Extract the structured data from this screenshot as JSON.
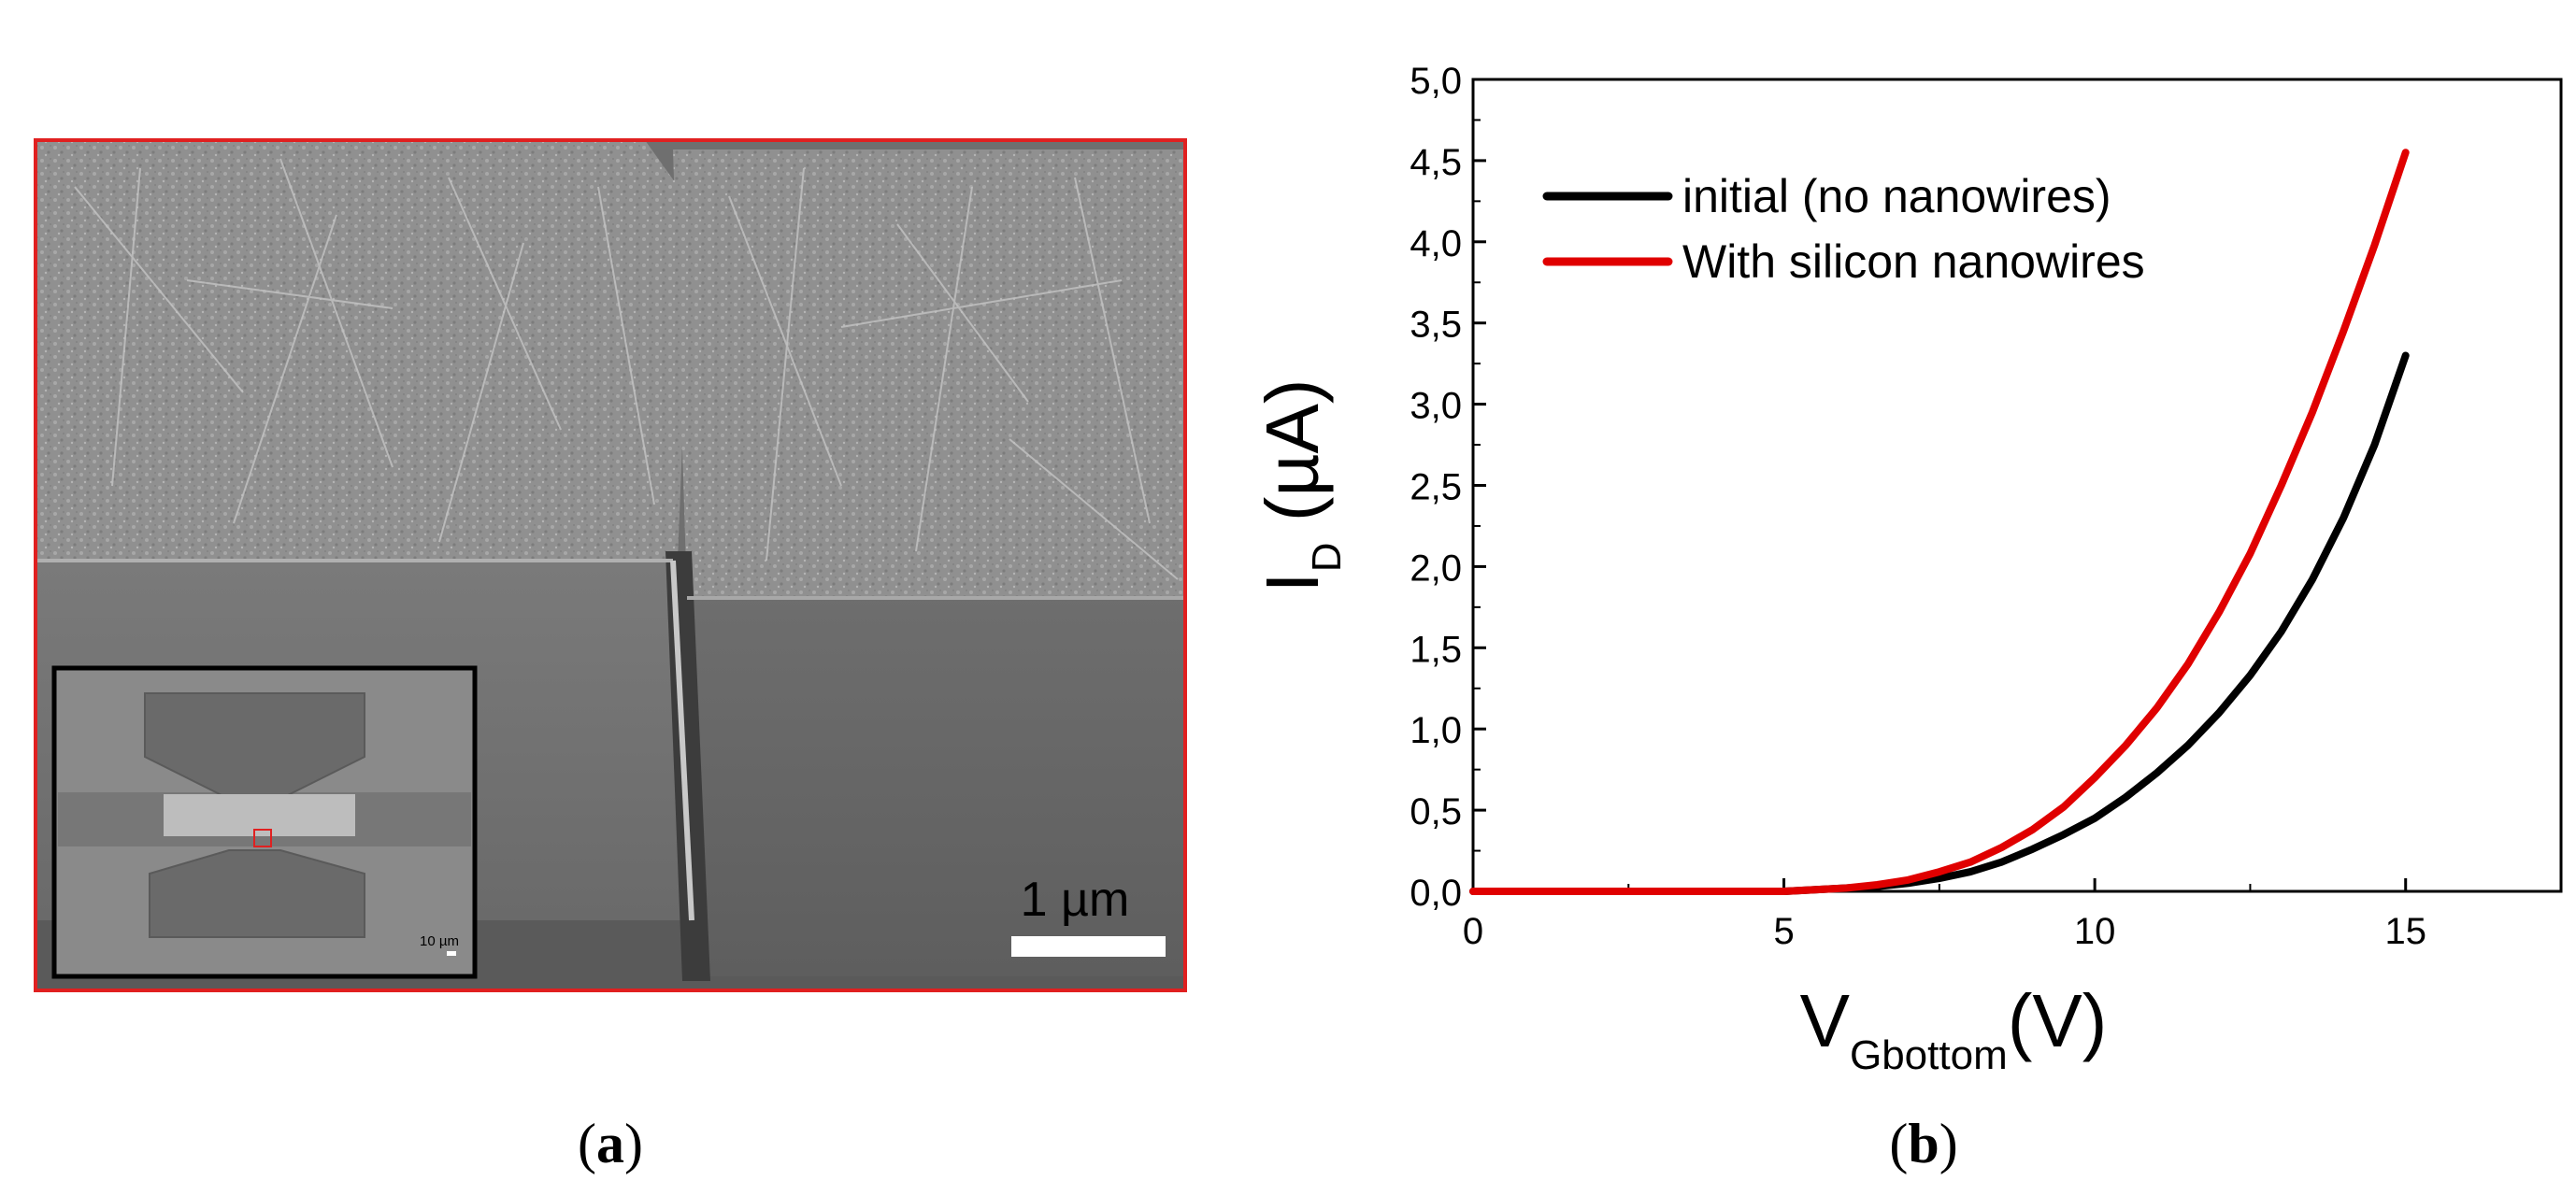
{
  "panel_a": {
    "caption_open": "(",
    "caption_letter": "a",
    "caption_close": ")",
    "scale_bar_label": "1 µm",
    "inset_scale_label": "10 µm",
    "frame_color": "#e02020",
    "inset_marker_color": "#e02020"
  },
  "panel_b": {
    "caption_open": "(",
    "caption_letter": "b",
    "caption_close": ")"
  },
  "chart_data": {
    "type": "line",
    "title": "",
    "xlabel_main": "V",
    "xlabel_sub": "Gbottom",
    "xlabel_unit": "(V)",
    "ylabel_main": "I",
    "ylabel_sub": "D",
    "ylabel_unit": " (µA)",
    "xlim": [
      0,
      17.5
    ],
    "ylim": [
      0,
      5.0
    ],
    "xticks": [
      0,
      5,
      10,
      15
    ],
    "xtick_labels": [
      "0",
      "5",
      "10",
      "15"
    ],
    "yticks": [
      0,
      0.5,
      1.0,
      1.5,
      2.0,
      2.5,
      3.0,
      3.5,
      4.0,
      4.5,
      5.0
    ],
    "ytick_labels": [
      "0,0",
      "0,5",
      "1,0",
      "1,5",
      "2,0",
      "2,5",
      "3,0",
      "3,5",
      "4,0",
      "4,5",
      "5,0"
    ],
    "legend_position": "top-left",
    "series": [
      {
        "name": "initial (no nanowires)",
        "color": "#000000",
        "x": [
          0,
          5,
          6,
          6.5,
          7,
          7.5,
          8,
          8.5,
          9,
          9.5,
          10,
          10.5,
          11,
          11.5,
          12,
          12.5,
          13,
          13.5,
          14,
          14.5,
          15
        ],
        "y": [
          0,
          0,
          0.02,
          0.03,
          0.05,
          0.08,
          0.12,
          0.18,
          0.26,
          0.35,
          0.45,
          0.58,
          0.73,
          0.9,
          1.1,
          1.33,
          1.6,
          1.92,
          2.3,
          2.75,
          3.3
        ]
      },
      {
        "name": "With silicon nanowires",
        "color": "#e00000",
        "x": [
          0,
          5,
          6,
          6.5,
          7,
          7.5,
          8,
          8.5,
          9,
          9.5,
          10,
          10.5,
          11,
          11.5,
          12,
          12.5,
          13,
          13.5,
          14,
          14.5,
          15
        ],
        "y": [
          0,
          0,
          0.02,
          0.04,
          0.07,
          0.12,
          0.18,
          0.27,
          0.38,
          0.52,
          0.7,
          0.9,
          1.13,
          1.4,
          1.72,
          2.08,
          2.5,
          2.95,
          3.45,
          3.98,
          4.55
        ]
      }
    ]
  }
}
